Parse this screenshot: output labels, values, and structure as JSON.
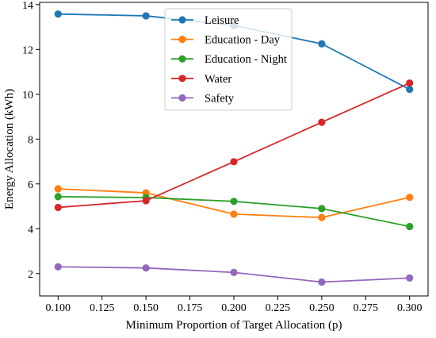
{
  "chart_data": {
    "type": "line",
    "title": "",
    "xlabel": "Minimum Proportion of Target Allocation (p)",
    "ylabel": "Energy Allocation (kWh)",
    "x": [
      0.1,
      0.15,
      0.2,
      0.25,
      0.3
    ],
    "xlim": [
      0.0895,
      0.3105
    ],
    "ylim": [
      1.0,
      14.1
    ],
    "x_ticks": [
      0.1,
      0.125,
      0.15,
      0.175,
      0.2,
      0.225,
      0.25,
      0.275,
      0.3
    ],
    "x_tick_labels": [
      "0.100",
      "0.125",
      "0.150",
      "0.175",
      "0.200",
      "0.225",
      "0.250",
      "0.275",
      "0.300"
    ],
    "y_ticks": [
      2,
      4,
      6,
      8,
      10,
      12,
      14
    ],
    "y_tick_labels": [
      "2",
      "4",
      "6",
      "8",
      "10",
      "12",
      "14"
    ],
    "grid": false,
    "legend_position": "top-center",
    "series": [
      {
        "name": "Leisure",
        "color": "#1f77b4",
        "values": [
          13.58,
          13.5,
          13.07,
          12.25,
          10.22
        ]
      },
      {
        "name": "Education - Day",
        "color": "#ff7f0e",
        "values": [
          5.78,
          5.6,
          4.65,
          4.5,
          5.4
        ]
      },
      {
        "name": "Education - Night",
        "color": "#2ca02c",
        "values": [
          5.43,
          5.39,
          5.22,
          4.9,
          4.1
        ]
      },
      {
        "name": "Water",
        "color": "#d62728",
        "values": [
          4.95,
          5.25,
          6.99,
          8.75,
          10.5
        ]
      },
      {
        "name": "Safety",
        "color": "#9467bd",
        "values": [
          2.3,
          2.25,
          2.05,
          1.62,
          1.8
        ]
      }
    ]
  }
}
